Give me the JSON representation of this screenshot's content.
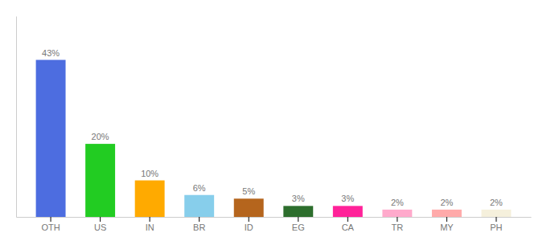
{
  "chart_data": {
    "type": "bar",
    "categories": [
      "OTH",
      "US",
      "IN",
      "BR",
      "ID",
      "EG",
      "CA",
      "TR",
      "MY",
      "PH"
    ],
    "values": [
      43,
      20,
      10,
      6,
      5,
      3,
      3,
      2,
      2,
      2
    ],
    "value_labels": [
      "43%",
      "20%",
      "10%",
      "6%",
      "5%",
      "3%",
      "3%",
      "2%",
      "2%",
      "2%"
    ],
    "colors": [
      "#4d6de0",
      "#22cc22",
      "#ffaa00",
      "#87ceeb",
      "#b5651d",
      "#2d6e2d",
      "#ff2299",
      "#ffaacc",
      "#ffaaaa",
      "#f5f0dc"
    ],
    "ylim": [
      0,
      55
    ],
    "data_labels": true,
    "tick_labels": "x",
    "grid": false
  }
}
